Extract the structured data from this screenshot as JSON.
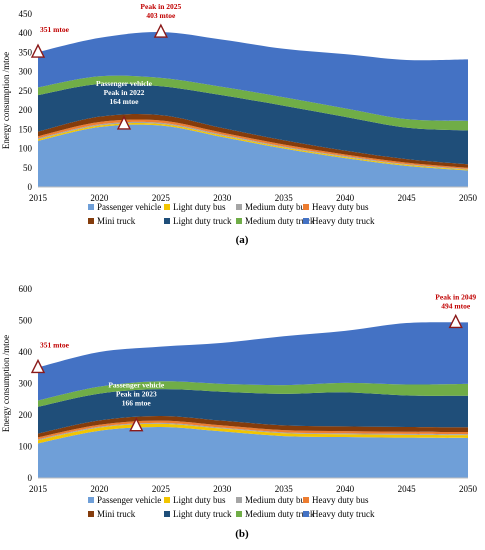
{
  "figure": {
    "panel_labels": [
      "(a)",
      "(b)"
    ],
    "y_axis_label": "Energy consumption /mtoe"
  },
  "legend": [
    {
      "name": "Passenger vehicle",
      "color": "#6f9fd8"
    },
    {
      "name": "Light duty bus",
      "color": "#f2c500"
    },
    {
      "name": "Medium duty bus",
      "color": "#a5a5a5"
    },
    {
      "name": "Heavy duty bus",
      "color": "#ed7d31"
    },
    {
      "name": "Mini truck",
      "color": "#843c0c"
    },
    {
      "name": "Light duty truck",
      "color": "#1f4e79"
    },
    {
      "name": "Medium duty truck",
      "color": "#70ad47"
    },
    {
      "name": "Heavy duty truck",
      "color": "#4472c4"
    }
  ],
  "chart_data": [
    {
      "type": "area",
      "stacked": true,
      "panel": "(a)",
      "x": [
        2015,
        2020,
        2025,
        2030,
        2035,
        2040,
        2045,
        2050
      ],
      "xlim": [
        2015,
        2050
      ],
      "ylim": [
        0,
        450
      ],
      "y_ticks": [
        0,
        50,
        100,
        150,
        200,
        250,
        300,
        350,
        400,
        450
      ],
      "x_ticks": [
        2015,
        2020,
        2025,
        2030,
        2035,
        2040,
        2045,
        2050
      ],
      "ylabel": "Energy consumption /mtoe",
      "series": [
        {
          "name": "Passenger vehicle",
          "values": [
            120,
            156,
            160,
            130,
            100,
            75,
            55,
            43
          ]
        },
        {
          "name": "Light duty bus",
          "values": [
            4,
            4,
            4,
            3.5,
            3,
            3,
            2.5,
            2
          ]
        },
        {
          "name": "Medium duty bus",
          "values": [
            3,
            3,
            3,
            3,
            2.5,
            2.5,
            2,
            2
          ]
        },
        {
          "name": "Heavy duty bus",
          "values": [
            5,
            6,
            6,
            5,
            5,
            4,
            4,
            3
          ]
        },
        {
          "name": "Mini truck",
          "values": [
            12,
            14,
            14,
            12,
            11,
            10,
            9,
            9
          ]
        },
        {
          "name": "Light duty truck",
          "values": [
            95,
            85,
            75,
            85,
            90,
            88,
            82,
            88
          ]
        },
        {
          "name": "Medium duty truck",
          "values": [
            20,
            20,
            22,
            22,
            22,
            22,
            22,
            25
          ]
        },
        {
          "name": "Heavy duty truck",
          "values": [
            92,
            100,
            119,
            123,
            126,
            141,
            154,
            160
          ]
        }
      ],
      "annotations": [
        {
          "text": "351 mtoe",
          "x": 2015,
          "y": 351,
          "color": "red"
        },
        {
          "text": "Peak in 2025",
          "text2": "403 mtoe",
          "x": 2025,
          "y": 403,
          "color": "red"
        },
        {
          "text": "Passenger vehicle",
          "text2": "Peak in 2022",
          "text3": "164 mtoe",
          "x": 2022,
          "y": 164,
          "color": "white"
        }
      ]
    },
    {
      "type": "area",
      "stacked": true,
      "panel": "(b)",
      "x": [
        2015,
        2020,
        2025,
        2030,
        2035,
        2040,
        2045,
        2050
      ],
      "xlim": [
        2015,
        2050
      ],
      "ylim": [
        0,
        600
      ],
      "y_ticks": [
        0,
        100,
        200,
        300,
        400,
        500,
        600
      ],
      "x_ticks": [
        2015,
        2020,
        2025,
        2030,
        2035,
        2040,
        2045,
        2050
      ],
      "ylabel": "Energy consumption /mtoe",
      "series": [
        {
          "name": "Passenger vehicle",
          "values": [
            110,
            150,
            162,
            148,
            133,
            130,
            128,
            127
          ]
        },
        {
          "name": "Light duty bus",
          "values": [
            10,
            10,
            10,
            9,
            9,
            9,
            9,
            9
          ]
        },
        {
          "name": "Medium duty bus",
          "values": [
            3,
            3,
            3,
            3,
            3,
            3,
            3,
            3
          ]
        },
        {
          "name": "Heavy duty bus",
          "values": [
            6,
            6,
            7,
            7,
            7,
            7,
            7,
            7
          ]
        },
        {
          "name": "Mini truck",
          "values": [
            12,
            14,
            15,
            15,
            15,
            15,
            15,
            15
          ]
        },
        {
          "name": "Light duty truck",
          "values": [
            85,
            85,
            85,
            92,
            100,
            108,
            100,
            100
          ]
        },
        {
          "name": "Medium duty truck",
          "values": [
            20,
            22,
            25,
            25,
            28,
            30,
            35,
            38
          ]
        },
        {
          "name": "Heavy duty truck",
          "values": [
            105,
            110,
            110,
            130,
            155,
            165,
            195,
            195
          ]
        }
      ],
      "annotations": [
        {
          "text": "351 mtoe",
          "x": 2015,
          "y": 351,
          "color": "red"
        },
        {
          "text": "Peak in 2049",
          "text2": "494 mtoe",
          "x": 2049,
          "y": 494,
          "color": "red"
        },
        {
          "text": "Passenger vehicle",
          "text2": "Peak in 2023",
          "text3": "166 mtoe",
          "x": 2023,
          "y": 166,
          "color": "white"
        }
      ]
    }
  ]
}
